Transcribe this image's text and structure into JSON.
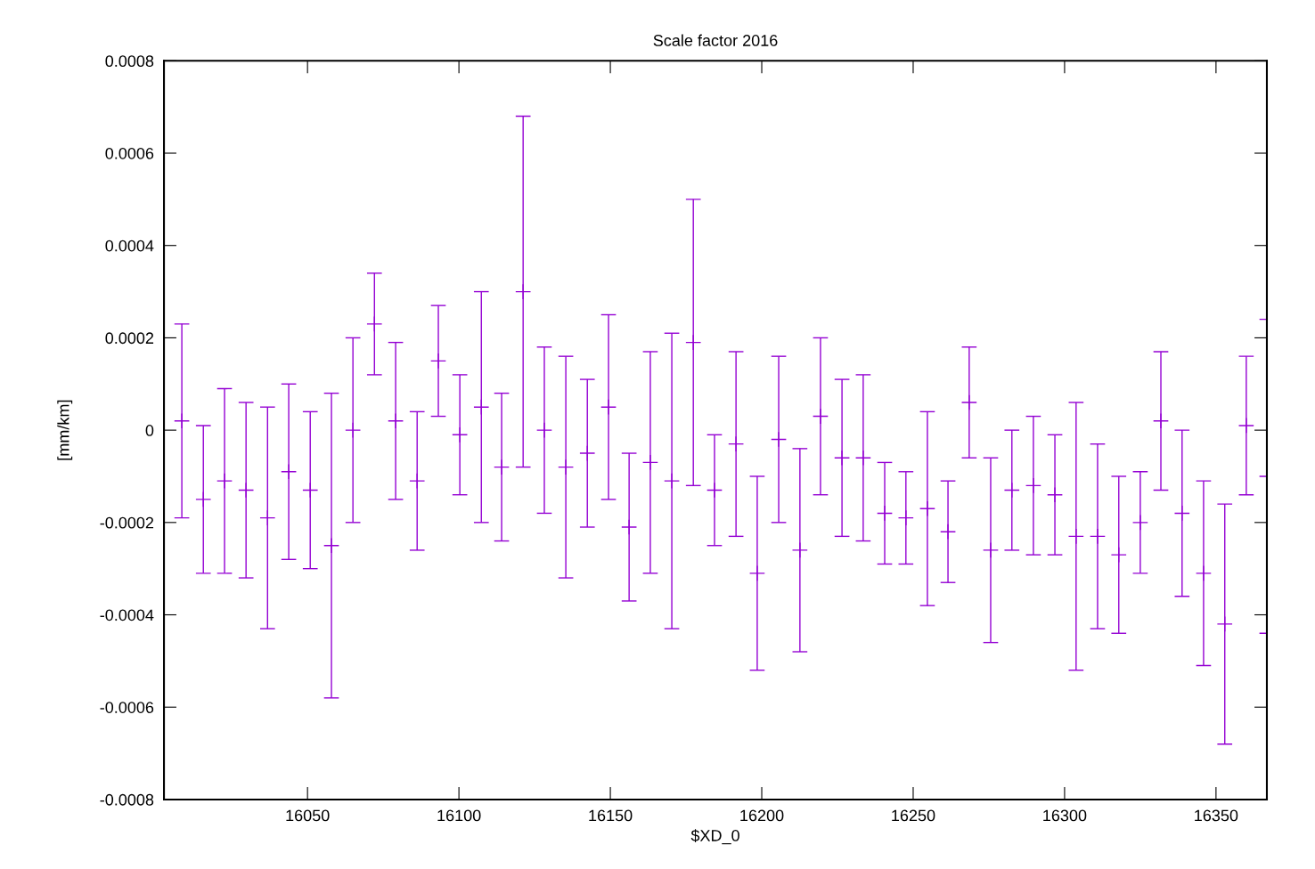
{
  "chart_data": {
    "type": "scatter",
    "title": "Scale factor 2016",
    "xlabel": "$XD_0",
    "ylabel": "[mm/km]",
    "x": [
      16008.5,
      16015.6,
      16022.6,
      16029.7,
      16036.8,
      16043.8,
      16050.9,
      16057.9,
      16065.0,
      16072.1,
      16079.1,
      16086.2,
      16093.2,
      16100.3,
      16107.4,
      16114.1,
      16121.2,
      16128.2,
      16135.3,
      16142.4,
      16149.4,
      16156.2,
      16163.2,
      16170.3,
      16177.4,
      16184.4,
      16191.5,
      16198.5,
      16205.6,
      16212.6,
      16219.4,
      16226.5,
      16233.5,
      16240.6,
      16247.6,
      16254.7,
      16261.5,
      16268.5,
      16275.6,
      16282.6,
      16289.7,
      16296.8,
      16303.8,
      16310.9,
      16317.9,
      16325.0,
      16331.8,
      16338.8,
      16345.9,
      16352.9,
      16360.0,
      16366.8
    ],
    "series": [
      {
        "color": "#9400d3",
        "values": [
          2e-05,
          -0.00015,
          -0.00011,
          -0.00013,
          -0.00019,
          -9e-05,
          -0.00013,
          -0.00025,
          0,
          0.00023,
          2e-05,
          -0.00011,
          0.00015,
          -1e-05,
          5e-05,
          -8e-05,
          0.0003,
          0,
          -8e-05,
          -5e-05,
          5e-05,
          -0.00021,
          -7e-05,
          -0.00011,
          0.00019,
          -0.00013,
          -3e-05,
          -0.00031,
          -2e-05,
          -0.00026,
          3e-05,
          -6e-05,
          -6e-05,
          -0.00018,
          -0.00019,
          -0.00017,
          -0.00022,
          6e-05,
          -0.00026,
          -0.00013,
          -0.00012,
          -0.00014,
          -0.00023,
          -0.00023,
          -0.00027,
          -0.0002,
          2e-05,
          -0.00018,
          -0.00031,
          -0.00042,
          1e-05,
          -0.0001
        ],
        "errors": [
          [
            -0.00019,
            0.00023
          ],
          [
            -0.00031,
            1e-05
          ],
          [
            -0.00031,
            9e-05
          ],
          [
            -0.00032,
            6e-05
          ],
          [
            -0.00043,
            5e-05
          ],
          [
            -0.00028,
            0.0001
          ],
          [
            -0.0003,
            4e-05
          ],
          [
            -0.00058,
            8e-05
          ],
          [
            -0.0002,
            0.0002
          ],
          [
            0.00012,
            0.00034
          ],
          [
            -0.00015,
            0.00019
          ],
          [
            -0.00026,
            4e-05
          ],
          [
            3e-05,
            0.00027
          ],
          [
            -0.00014,
            0.00012
          ],
          [
            -0.0002,
            0.0003
          ],
          [
            -0.00024,
            8e-05
          ],
          [
            -8e-05,
            0.00068
          ],
          [
            -0.00018,
            0.00018
          ],
          [
            -0.00032,
            0.00016
          ],
          [
            -0.00021,
            0.00011
          ],
          [
            -0.00015,
            0.00025
          ],
          [
            -0.00037,
            -5e-05
          ],
          [
            -0.00031,
            0.00017
          ],
          [
            -0.00043,
            0.00021
          ],
          [
            -0.00012,
            0.0005
          ],
          [
            -0.00025,
            -1e-05
          ],
          [
            -0.00023,
            0.00017
          ],
          [
            -0.00052,
            -0.0001
          ],
          [
            -0.0002,
            0.00016
          ],
          [
            -0.00048,
            -4e-05
          ],
          [
            -0.00014,
            0.0002
          ],
          [
            -0.00023,
            0.00011
          ],
          [
            -0.00024,
            0.00012
          ],
          [
            -0.00029,
            -7e-05
          ],
          [
            -0.00029,
            -9e-05
          ],
          [
            -0.00038,
            4e-05
          ],
          [
            -0.00033,
            -0.00011
          ],
          [
            -6e-05,
            0.00018
          ],
          [
            -0.00046,
            -6e-05
          ],
          [
            -0.00026,
            0
          ],
          [
            -0.00027,
            3e-05
          ],
          [
            -0.00027,
            -1e-05
          ],
          [
            -0.00052,
            6e-05
          ],
          [
            -0.00043,
            -3e-05
          ],
          [
            -0.00044,
            -0.0001
          ],
          [
            -0.00031,
            -9e-05
          ],
          [
            -0.00013,
            0.00017
          ],
          [
            -0.00036,
            0
          ],
          [
            -0.00051,
            -0.00011
          ],
          [
            -0.00068,
            -0.00016
          ],
          [
            -0.00014,
            0.00016
          ],
          [
            -0.00044,
            0.00024
          ]
        ]
      }
    ],
    "marker": "cross",
    "line_style": "none",
    "grid": false,
    "legend": false,
    "xlim": [
      16002.6,
      16366.8
    ],
    "xticks": [
      16050,
      16100,
      16150,
      16200,
      16250,
      16300,
      16350
    ],
    "ylim": [
      -0.0008,
      0.0008
    ],
    "yticks": [
      -0.0008,
      -0.0006,
      -0.0004,
      -0.0002,
      0,
      0.0002,
      0.0004,
      0.0006,
      0.0008
    ]
  }
}
